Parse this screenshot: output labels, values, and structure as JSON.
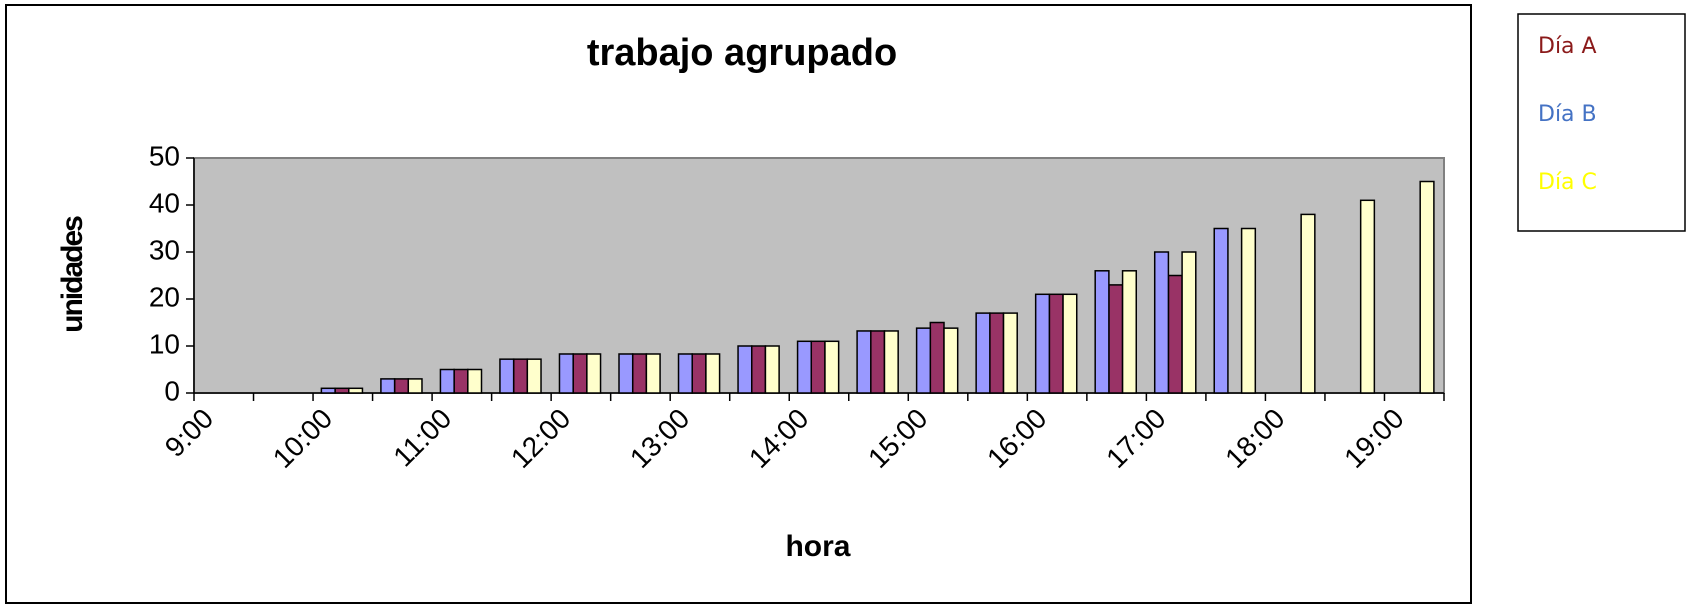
{
  "chart_data": {
    "type": "bar",
    "title": "trabajo agrupado",
    "x_label": "hora",
    "y_label": "unidades",
    "categories": [
      "9:00",
      null,
      "10:00",
      null,
      "11:00",
      null,
      "12:00",
      null,
      "13:00",
      null,
      "14:00",
      null,
      "15:00",
      null,
      "16:00",
      null,
      "17:00",
      null,
      "18:00",
      null,
      "19:00"
    ],
    "series": [
      {
        "name": "Día A",
        "color": "#993366",
        "label_color": "#8b1a1a",
        "values": [
          null,
          null,
          1,
          3,
          5,
          7.2,
          8.3,
          8.3,
          8.3,
          10,
          11,
          13.2,
          15,
          17,
          21,
          23,
          25,
          null,
          null,
          null,
          null
        ]
      },
      {
        "name": "Día B",
        "color": "#9999ff",
        "label_color": "#4472c4",
        "values": [
          null,
          null,
          1,
          3,
          5,
          7.2,
          8.3,
          8.3,
          8.3,
          10,
          11,
          13.2,
          13.8,
          17,
          21,
          26,
          30,
          35,
          null,
          null,
          null
        ]
      },
      {
        "name": "Día C",
        "color": "#ffffcc",
        "label_color": "#ffff00",
        "values": [
          null,
          null,
          1,
          3,
          5,
          7.2,
          8.3,
          8.3,
          8.3,
          10,
          11,
          13.2,
          13.8,
          17,
          21,
          26,
          30,
          35,
          38,
          41,
          45
        ]
      }
    ],
    "ylim": [
      0,
      50
    ],
    "yticks": [
      0,
      10,
      20,
      30,
      40,
      50
    ],
    "grid": false
  }
}
